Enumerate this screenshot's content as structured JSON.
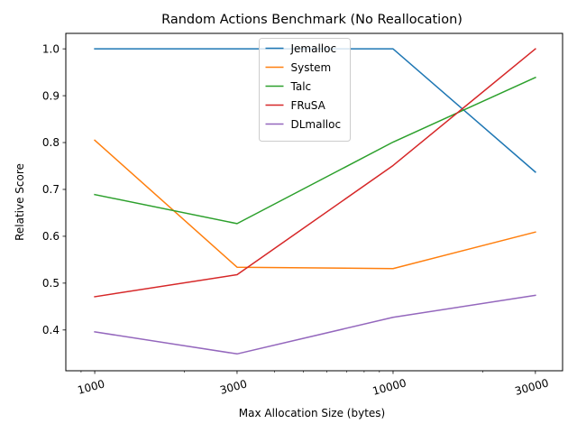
{
  "chart_data": {
    "type": "line",
    "title": "Random Actions Benchmark (No Reallocation)",
    "xlabel": "Max Allocation Size (bytes)",
    "ylabel": "Relative Score",
    "x_scale": "log",
    "x": [
      1000,
      3000,
      10000,
      30000
    ],
    "x_tick_labels": [
      "1000",
      "3000",
      "10000",
      "30000"
    ],
    "xlim": [
      800,
      37000
    ],
    "ylim": [
      0.313,
      1.033
    ],
    "y_ticks": [
      0.4,
      0.5,
      0.6,
      0.7,
      0.8,
      0.9,
      1.0
    ],
    "y_tick_labels": [
      "0.4",
      "0.5",
      "0.6",
      "0.7",
      "0.8",
      "0.9",
      "1.0"
    ],
    "grid": false,
    "legend_position": "top-center",
    "series": [
      {
        "name": "Jemalloc",
        "color": "#1f77b4",
        "values": [
          1.0,
          1.0,
          1.0,
          0.737
        ]
      },
      {
        "name": "System",
        "color": "#ff7f0e",
        "values": [
          0.805,
          0.534,
          0.531,
          0.609
        ]
      },
      {
        "name": "Talc",
        "color": "#2ca02c",
        "values": [
          0.689,
          0.627,
          0.801,
          0.939
        ]
      },
      {
        "name": "FRuSA",
        "color": "#d62728",
        "values": [
          0.471,
          0.518,
          0.751,
          1.0
        ]
      },
      {
        "name": "DLmalloc",
        "color": "#9467bd",
        "values": [
          0.396,
          0.349,
          0.427,
          0.474
        ]
      }
    ]
  }
}
